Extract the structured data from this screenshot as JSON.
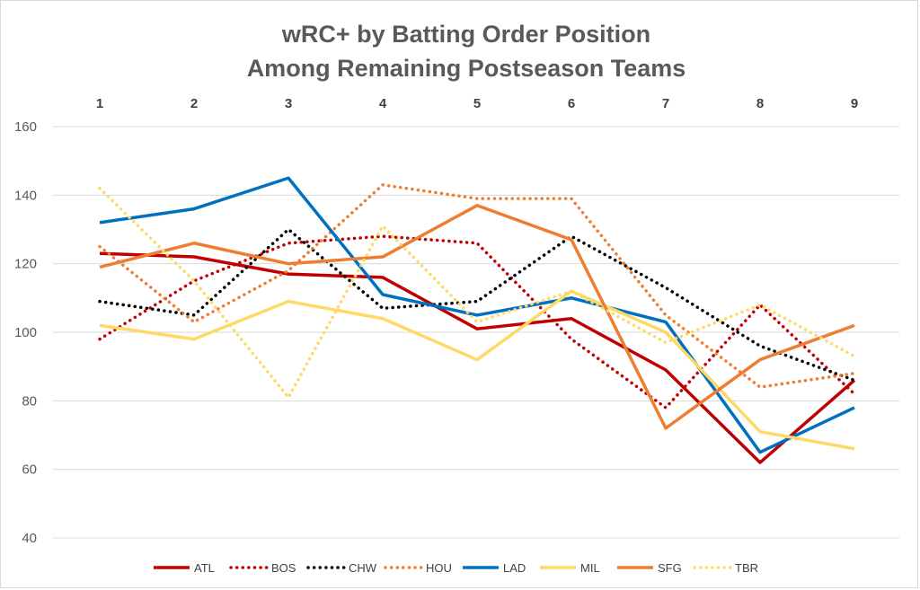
{
  "chart_data": {
    "type": "line",
    "title": [
      "wRC+ by Batting Order Position",
      "Among Remaining Postseason Teams"
    ],
    "xlabel": "",
    "ylabel": "",
    "categories": [
      "1",
      "2",
      "3",
      "4",
      "5",
      "6",
      "7",
      "8",
      "9"
    ],
    "ylim": [
      40,
      160
    ],
    "yticks": [
      40,
      60,
      80,
      100,
      120,
      140,
      160
    ],
    "x_axis_position": "top",
    "grid": "horizontal",
    "legend_position": "bottom",
    "series": [
      {
        "name": "ATL",
        "color": "#c00000",
        "style": "solid",
        "values": [
          123,
          122,
          117,
          116,
          101,
          104,
          89,
          62,
          86
        ]
      },
      {
        "name": "BOS",
        "color": "#c00000",
        "style": "dotted",
        "values": [
          98,
          115,
          126,
          128,
          126,
          98,
          78,
          108,
          82
        ]
      },
      {
        "name": "CHW",
        "color": "#000000",
        "style": "dotted",
        "values": [
          109,
          105,
          130,
          107,
          109,
          128,
          113,
          96,
          86
        ]
      },
      {
        "name": "HOU",
        "color": "#ed7d31",
        "style": "dotted",
        "values": [
          125,
          103,
          118,
          143,
          139,
          139,
          105,
          84,
          88
        ]
      },
      {
        "name": "LAD",
        "color": "#0070c0",
        "style": "solid",
        "values": [
          132,
          136,
          145,
          111,
          105,
          110,
          103,
          65,
          78
        ]
      },
      {
        "name": "MIL",
        "color": "#ffd966",
        "style": "solid",
        "values": [
          102,
          98,
          109,
          104,
          92,
          112,
          100,
          71,
          66
        ]
      },
      {
        "name": "SFG",
        "color": "#ed7d31",
        "style": "solid",
        "values": [
          119,
          126,
          120,
          122,
          137,
          127,
          72,
          92,
          102
        ]
      },
      {
        "name": "TBR",
        "color": "#ffd966",
        "style": "dotted",
        "values": [
          142,
          115,
          81,
          131,
          103,
          112,
          97,
          108,
          93
        ]
      }
    ]
  }
}
